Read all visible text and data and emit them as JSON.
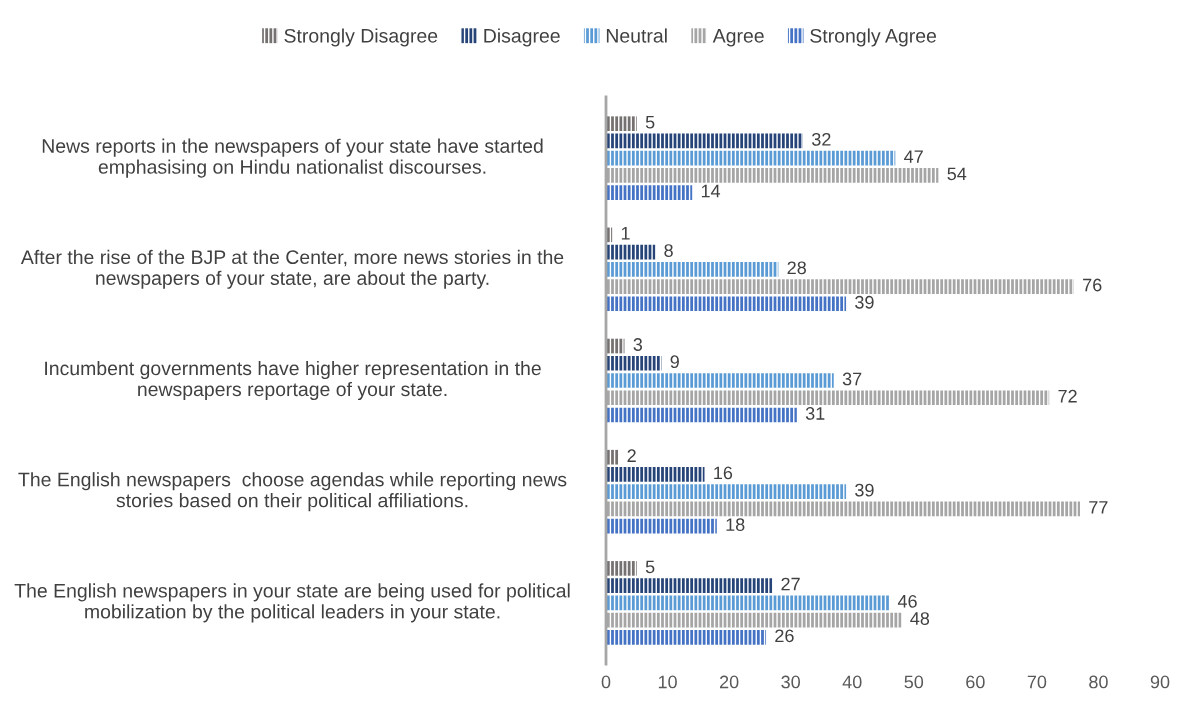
{
  "chart_data": {
    "type": "bar",
    "orientation": "horizontal",
    "categories": [
      "News reports in the newspapers of your state have started emphasising on Hindu nationalist discourses.",
      "After the rise of the BJP at the Center, more news stories in the newspapers of your state, are about the party.",
      "Incumbent governments have higher representation in the newspapers reportage of your state.",
      "The English newspapers  choose agendas while reporting news stories based on their political affiliations.",
      "The English newspapers in your state are being used for political mobilization by the political leaders in your state."
    ],
    "series": [
      {
        "name": "Strongly Disagree",
        "color": "#767171",
        "values": [
          5,
          1,
          3,
          2,
          5
        ]
      },
      {
        "name": "Disagree",
        "color": "#264478",
        "values": [
          32,
          8,
          9,
          16,
          27
        ]
      },
      {
        "name": "Neutral",
        "color": "#5b9bd5",
        "values": [
          47,
          28,
          37,
          39,
          46
        ]
      },
      {
        "name": "Agree",
        "color": "#a5a5a5",
        "values": [
          54,
          76,
          72,
          77,
          48
        ]
      },
      {
        "name": "Strongly Agree",
        "color": "#4472c4",
        "values": [
          14,
          39,
          31,
          18,
          26
        ]
      }
    ],
    "xlim": [
      0,
      90
    ],
    "xticks": [
      0,
      10,
      20,
      30,
      40,
      50,
      60,
      70,
      80,
      90
    ],
    "data_labels": true,
    "grid": false,
    "legend": "top"
  }
}
